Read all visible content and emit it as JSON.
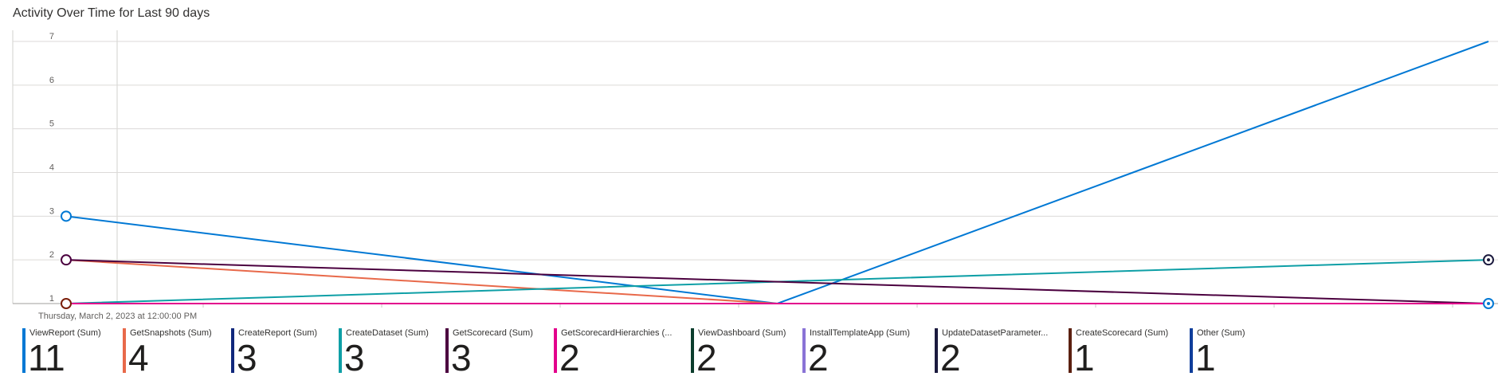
{
  "title": "Activity Over Time for Last 90 days",
  "chart_data": {
    "type": "line",
    "title": "Activity Over Time for Last 90 days",
    "xlabel": "",
    "ylabel": "",
    "ylim": [
      1,
      7
    ],
    "y_ticks": [
      "1",
      "2",
      "3",
      "4",
      "5",
      "6",
      "7"
    ],
    "x_first_label": "Thursday, March 2, 2023 at 12:00:00 PM",
    "series": [
      {
        "name": "ViewReport (Sum)",
        "color": "#0078d4",
        "points": [
          [
            0,
            3
          ],
          [
            0.5,
            1
          ],
          [
            1,
            7
          ]
        ]
      },
      {
        "name": "GetSnapshots (Sum)",
        "color": "#e8694a",
        "points": [
          [
            0,
            2
          ],
          [
            0.5,
            1
          ],
          [
            1,
            1
          ]
        ]
      },
      {
        "name": "CreateDataset (Sum)",
        "color": "#0e9fa6",
        "points": [
          [
            0,
            1
          ],
          [
            0.5,
            1.5
          ],
          [
            1,
            2
          ]
        ]
      },
      {
        "name": "GetScorecard (Sum)",
        "color": "#4b003f",
        "points": [
          [
            0,
            2
          ],
          [
            0.5,
            1.5
          ],
          [
            1,
            1
          ]
        ]
      },
      {
        "name": "GetScorecardHierarchies (Sum)",
        "color": "#e3008c",
        "points": [
          [
            0,
            1
          ],
          [
            0.5,
            1
          ],
          [
            1,
            1
          ]
        ]
      }
    ],
    "markers": [
      {
        "x": 0,
        "y": 3,
        "color": "#0078d4"
      },
      {
        "x": 0,
        "y": 2,
        "color": "#4b003f"
      },
      {
        "x": 0,
        "y": 1,
        "color": "#7a1e0a"
      },
      {
        "x": 1,
        "y": 2,
        "color": "#1b1a3e"
      },
      {
        "x": 1,
        "y": 1,
        "color": "#0078d4"
      }
    ],
    "grid": true,
    "legend_position": "bottom"
  },
  "legend": [
    {
      "label": "ViewReport (Sum)",
      "value": "11",
      "color": "#0078d4"
    },
    {
      "label": "GetSnapshots (Sum)",
      "value": "4",
      "color": "#e8694a"
    },
    {
      "label": "CreateReport (Sum)",
      "value": "3",
      "color": "#11287c"
    },
    {
      "label": "CreateDataset (Sum)",
      "value": "3",
      "color": "#0e9fa6"
    },
    {
      "label": "GetScorecard (Sum)",
      "value": "3",
      "color": "#4b003f"
    },
    {
      "label": "GetScorecardHierarchies (...",
      "value": "2",
      "color": "#e3008c"
    },
    {
      "label": "ViewDashboard (Sum)",
      "value": "2",
      "color": "#0b3d2c"
    },
    {
      "label": "InstallTemplateApp (Sum)",
      "value": "2",
      "color": "#8a73d6"
    },
    {
      "label": "UpdateDatasetParameter...",
      "value": "2",
      "color": "#1b1a3e"
    },
    {
      "label": "CreateScorecard (Sum)",
      "value": "1",
      "color": "#5c2010"
    },
    {
      "label": "Other (Sum)",
      "value": "1",
      "color": "#0f3e9b"
    }
  ]
}
